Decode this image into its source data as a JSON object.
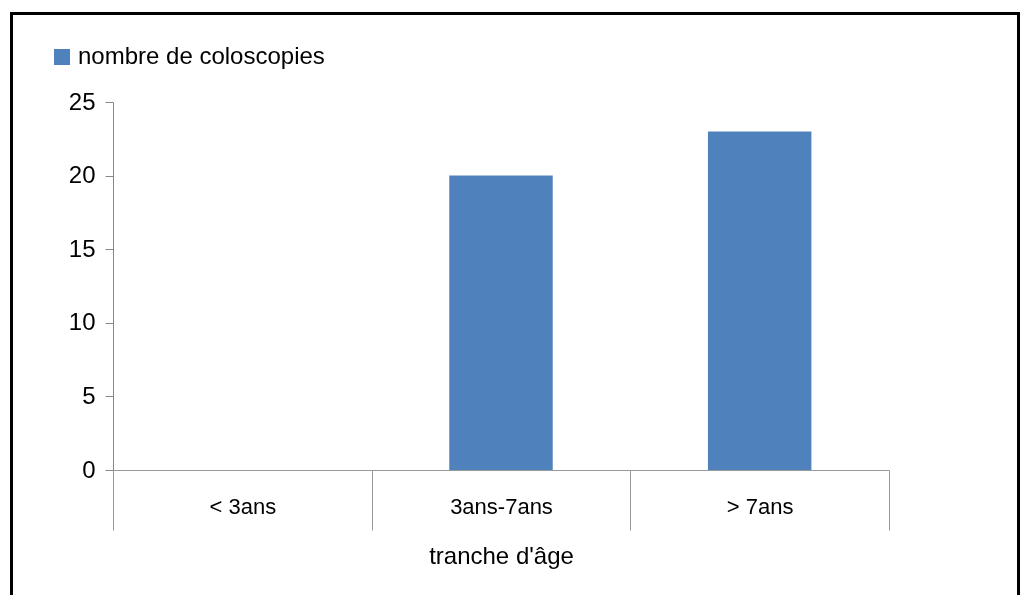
{
  "chart_data": {
    "type": "bar",
    "categories": [
      "< 3ans",
      "3ans-7ans",
      "> 7ans"
    ],
    "series": [
      {
        "name": "nombre de coloscopies",
        "color": "#4f81bd",
        "values": [
          0,
          20,
          23
        ]
      }
    ],
    "xlabel": "tranche d'âge",
    "ylim": [
      0,
      25
    ],
    "yticks": [
      0,
      5,
      10,
      15,
      20,
      25
    ],
    "grid": false,
    "legend": "top left"
  }
}
